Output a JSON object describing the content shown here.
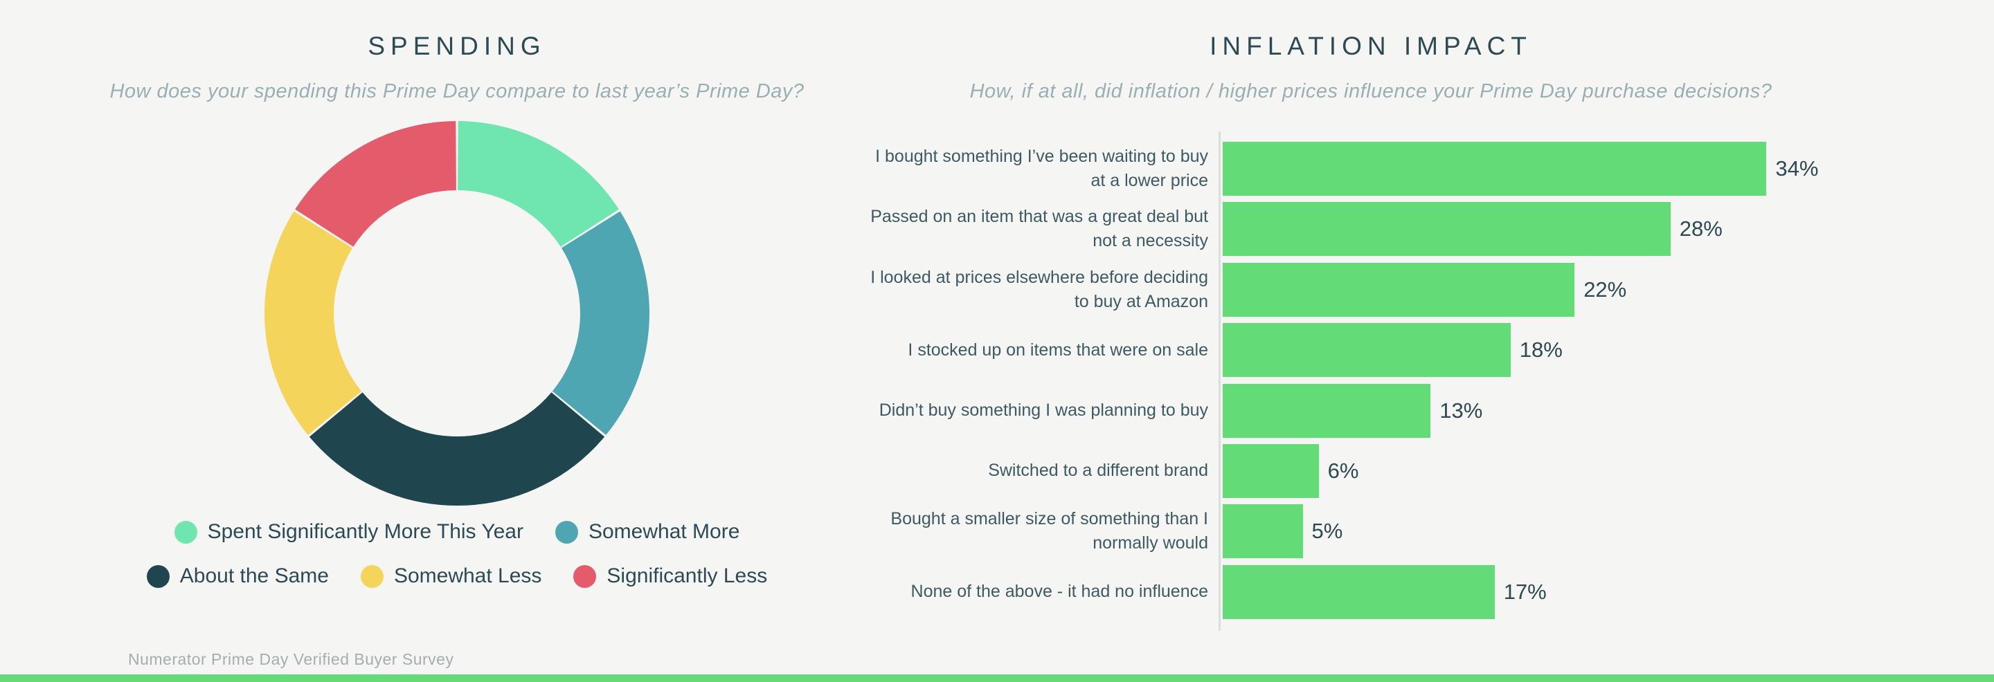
{
  "page": {
    "background_color": "#F5F5F4",
    "accent_bar_color": "#63DC78"
  },
  "footer": {
    "source": "Numerator Prime Day Verified Buyer Survey"
  },
  "chart_data": [
    {
      "type": "pie",
      "variant": "donut",
      "title": "SPENDING",
      "subtitle": "How does your spending this Prime Day compare to last year’s Prime Day?",
      "legend_position": "bottom",
      "segments": [
        {
          "label": "Spent Significantly More This Year",
          "value": 16,
          "color": "#6FE5B0"
        },
        {
          "label": "Somewhat More",
          "value": 20,
          "color": "#4FA6B3"
        },
        {
          "label": "About the Same",
          "value": 28,
          "color": "#1F464E"
        },
        {
          "label": "Somewhat Less",
          "value": 20,
          "color": "#F5D45C"
        },
        {
          "label": "Significantly Less",
          "value": 16,
          "color": "#E45B6C"
        }
      ]
    },
    {
      "type": "bar",
      "orientation": "horizontal",
      "title": "INFLATION IMPACT",
      "subtitle": "How, if at all, did inflation / higher prices influence your Prime Day purchase decisions?",
      "grid": false,
      "xlim": [
        0,
        38
      ],
      "bar_color": "#63DC78",
      "value_label_position": "outside-end",
      "categories": [
        "I bought something I’ve been waiting to buy at a lower price",
        "Passed on an item that was a great deal but not a necessity",
        "I looked at prices elsewhere before deciding to buy at Amazon",
        "I stocked up on items that were on sale",
        "Didn’t buy something I was planning to buy",
        "Switched to a different brand",
        "Bought a smaller size of something than I normally would",
        "None of the above - it had no influence"
      ],
      "values": [
        34,
        28,
        22,
        18,
        13,
        6,
        5,
        17
      ],
      "value_labels": [
        "34%",
        "28%",
        "22%",
        "18%",
        "13%",
        "6%",
        "5%",
        "17%"
      ]
    }
  ]
}
